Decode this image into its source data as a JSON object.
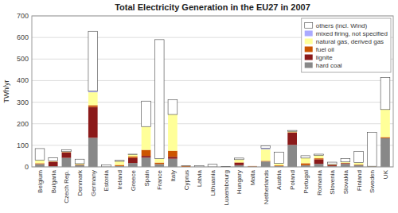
{
  "chart_data": {
    "type": "bar",
    "stacked": true,
    "title": "Total Electricity Generation in the EU27 in 2007",
    "ylabel": "TWh/yr",
    "categories": [
      "Belgium",
      "Bulgaria",
      "Czech Rep.",
      "Denmark",
      "Germany",
      "Estonia",
      "Ireland",
      "Greece",
      "Spain",
      "France",
      "Italy",
      "Cyprus",
      "Latvia",
      "Lithuania",
      "Luxembourg",
      "Hungary",
      "Malta",
      "Netherlands",
      "Austria",
      "Poland",
      "Portugal",
      "Romania",
      "Slovenia",
      "Slovakia",
      "Finland",
      "Sweden",
      "UK"
    ],
    "series": [
      {
        "name": "hard coal",
        "color": "#888888",
        "values": [
          13,
          3,
          42,
          9,
          135,
          0,
          4,
          18,
          43,
          13,
          38,
          0,
          0,
          0,
          0,
          8,
          2,
          25,
          4,
          102,
          8,
          14,
          3,
          14,
          9,
          1,
          133
        ]
      },
      {
        "name": "lignite",
        "color": "#8B1A1A",
        "values": [
          0,
          20,
          25,
          0,
          143,
          0,
          0,
          24,
          8,
          0,
          9,
          0,
          0,
          0,
          0,
          11,
          0,
          0,
          0,
          57,
          0,
          21,
          5,
          3,
          0,
          0,
          0
        ]
      },
      {
        "name": "fuel oil",
        "color": "#CC5500",
        "values": [
          4,
          2,
          2,
          2,
          8,
          0,
          5,
          7,
          28,
          7,
          28,
          5,
          0,
          0,
          0,
          2,
          2,
          3,
          3,
          2,
          9,
          5,
          2,
          2,
          2,
          1,
          5
        ]
      },
      {
        "name": "natural gas, derived gas",
        "color": "#FFFF99",
        "values": [
          14,
          2,
          2,
          4,
          60,
          0,
          17,
          9,
          108,
          18,
          168,
          0,
          0,
          0,
          0,
          13,
          0,
          53,
          9,
          4,
          24,
          14,
          2,
          4,
          9,
          1,
          128
        ]
      },
      {
        "name": "mixed firing, not specified",
        "color": "#AAAAFF",
        "values": [
          0,
          0,
          0,
          0,
          5,
          0,
          0,
          0,
          0,
          0,
          0,
          0,
          0,
          0,
          0,
          0,
          0,
          5,
          0,
          0,
          0,
          0,
          0,
          0,
          0,
          0,
          0
        ]
      },
      {
        "name": "others (incl. Wind)",
        "color": "#FFFFFF",
        "values": [
          54,
          16,
          9,
          21,
          278,
          9,
          4,
          1,
          118,
          552,
          68,
          1,
          5,
          12,
          2,
          7,
          0,
          11,
          52,
          4,
          11,
          5,
          10,
          16,
          52,
          158,
          149
        ]
      }
    ],
    "ylim": [
      0,
      700
    ],
    "yticks": [
      0,
      100,
      200,
      300,
      400,
      500,
      600,
      700
    ],
    "grid": true,
    "legend": "upper right"
  }
}
